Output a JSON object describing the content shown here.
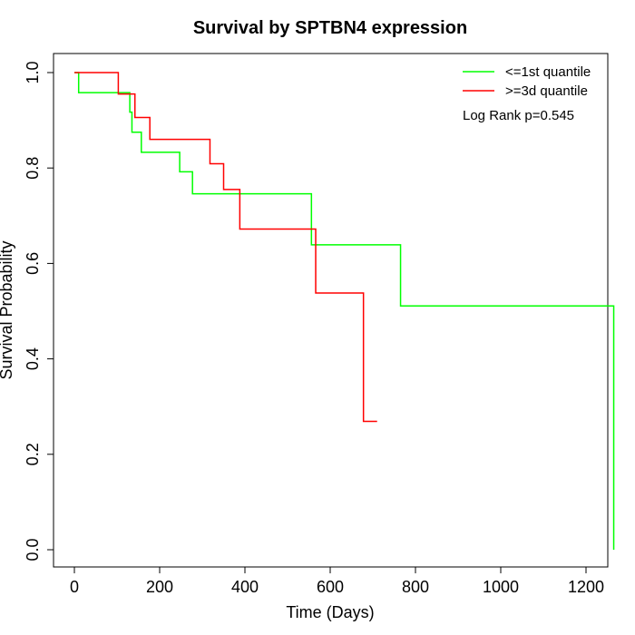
{
  "chart_data": {
    "type": "line",
    "title": "Survival by SPTBN4 expression",
    "xlabel": "Time (Days)",
    "ylabel": "Survival Probability",
    "xlim": [
      0,
      1300
    ],
    "ylim": [
      0,
      1.0
    ],
    "x_ticks": [
      0,
      200,
      400,
      600,
      800,
      1000,
      1200
    ],
    "y_ticks": [
      0.0,
      0.2,
      0.4,
      0.6,
      0.8,
      1.0
    ],
    "x_tick_labels": [
      "0",
      "200",
      "400",
      "600",
      "800",
      "1000",
      "1200"
    ],
    "y_tick_labels": [
      "0.0",
      "0.2",
      "0.4",
      "0.6",
      "0.8",
      "1.0"
    ],
    "grid": false,
    "legend_position": "top-right",
    "annotation": "Log Rank p=0.545",
    "series": [
      {
        "name": "<=1st quantile",
        "color": "#00ff00",
        "x": [
          0,
          10,
          130,
          135,
          157,
          247,
          277,
          556,
          765,
          1265,
          1265
        ],
        "y": [
          1.0,
          0.958,
          0.917,
          0.875,
          0.833,
          0.792,
          0.746,
          0.639,
          0.511,
          0.511,
          0.0
        ]
      },
      {
        "name": ">=3d quantile",
        "color": "#ff0000",
        "x": [
          0,
          103,
          142,
          177,
          318,
          350,
          388,
          566,
          678,
          710
        ],
        "y": [
          1.0,
          0.955,
          0.906,
          0.86,
          0.809,
          0.755,
          0.672,
          0.538,
          0.269,
          0.269
        ]
      }
    ]
  }
}
